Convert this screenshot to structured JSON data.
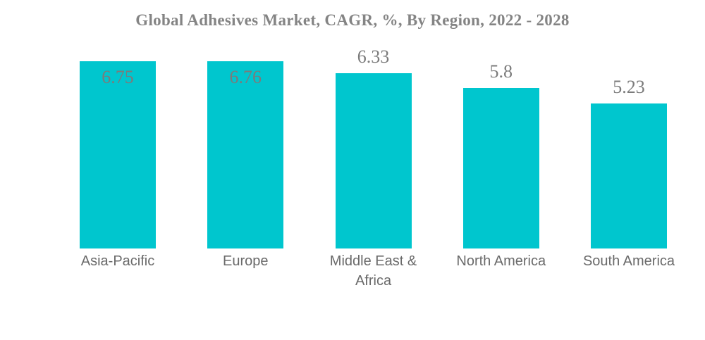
{
  "chart_data": {
    "type": "bar",
    "title": "Global Adhesives Market, CAGR, %, By Region, 2022 - 2028",
    "categories": [
      "Asia-Pacific",
      "Europe",
      "Middle East & Africa",
      "North America",
      "South America"
    ],
    "values": [
      6.75,
      6.76,
      6.33,
      5.8,
      5.23
    ],
    "value_labels": [
      "6.75",
      "6.76",
      "6.33",
      "5.8",
      "5.23"
    ],
    "label_positions": [
      "inside",
      "inside",
      "above",
      "above",
      "above"
    ],
    "xlabel": "",
    "ylabel": "",
    "ylim": [
      0,
      6.76
    ],
    "grid": false,
    "axes_visible": false,
    "legend_position": "none",
    "colors": {
      "bar": "#00C6CE",
      "title": "#848484",
      "value_label": "#7B7B7B",
      "category_label": "#6A6A6A"
    }
  }
}
